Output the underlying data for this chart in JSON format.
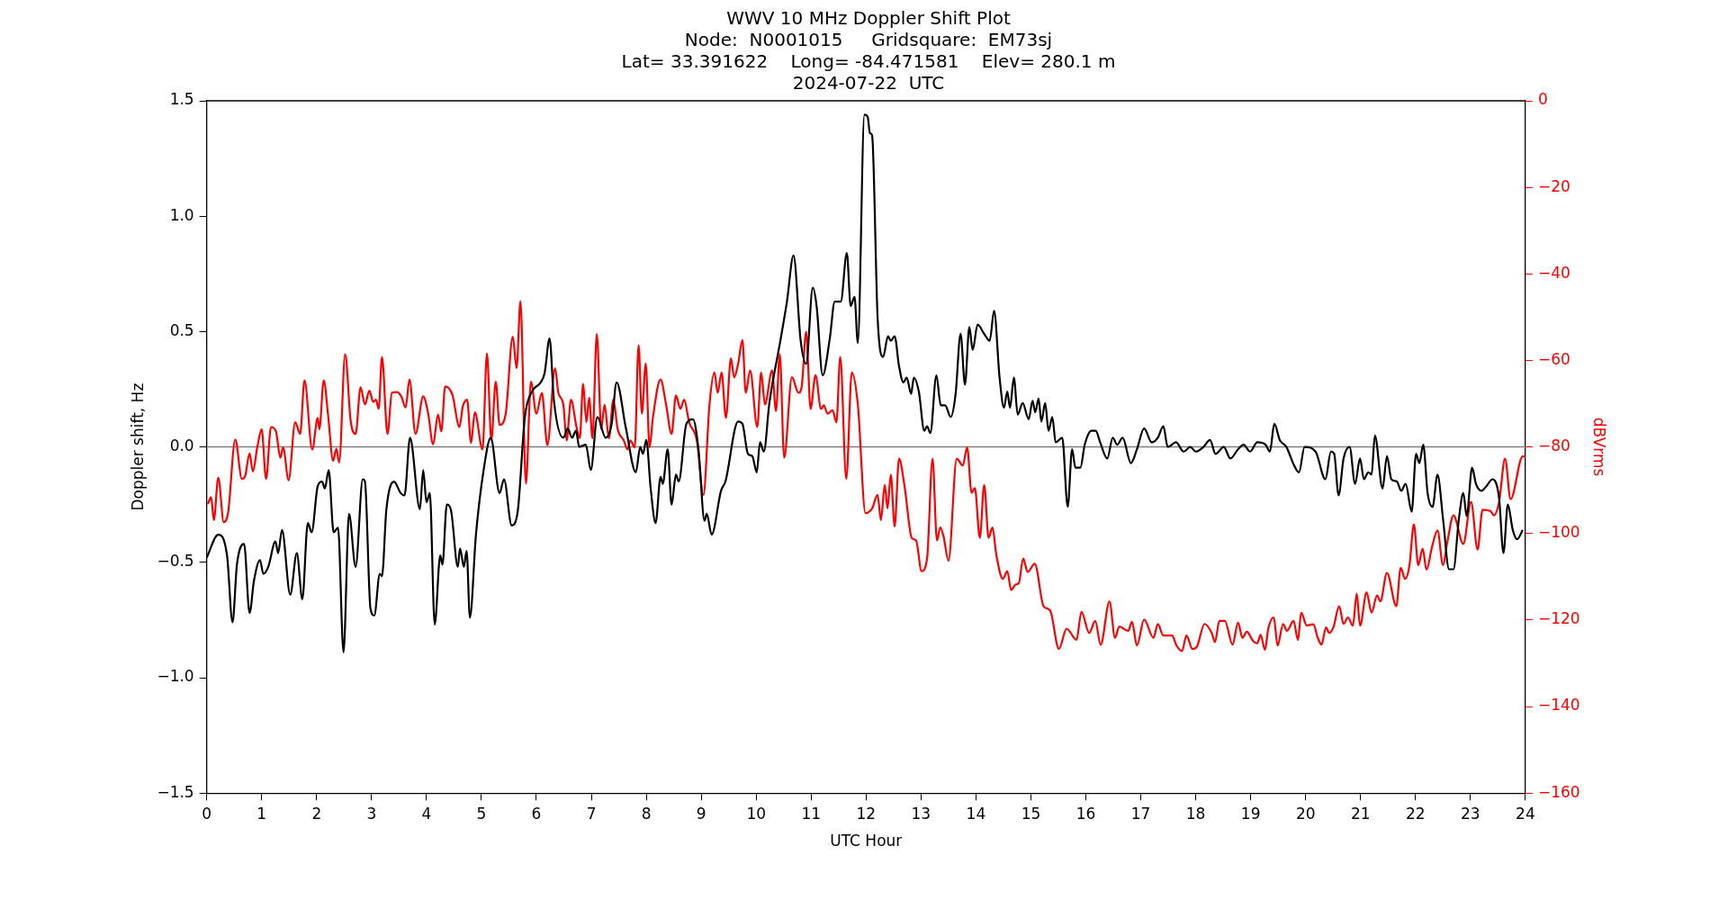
{
  "chart_data": {
    "type": "line",
    "title": "WWV 10 MHz Doppler Shift Plot\nNode:  N0001015     Gridsquare:  EM73sj\nLat= 33.391622    Long= -84.471581    Elev= 280.1 m\n2024-07-22  UTC",
    "xlabel": "UTC Hour",
    "ylabel": "Doppler shift, Hz",
    "y2label": "dBVrms",
    "xlim": [
      0,
      24
    ],
    "xticks": [
      0,
      1,
      2,
      3,
      4,
      5,
      6,
      7,
      8,
      9,
      10,
      11,
      12,
      13,
      14,
      15,
      16,
      17,
      18,
      19,
      20,
      21,
      22,
      23,
      24
    ],
    "ylim": [
      -1.5,
      1.5
    ],
    "yticks": [
      {
        "value": -1.5,
        "label": "−1.5"
      },
      {
        "value": -1.0,
        "label": "−1.0"
      },
      {
        "value": -0.5,
        "label": "−0.5"
      },
      {
        "value": 0,
        "label": "0.0"
      },
      {
        "value": 0.5,
        "label": "0.5"
      },
      {
        "value": 1.0,
        "label": "1.0"
      },
      {
        "value": 1.5,
        "label": "1.5"
      }
    ],
    "y2lim": [
      -160,
      0
    ],
    "y2ticks": [
      {
        "value": -160,
        "label": "−160"
      },
      {
        "value": -140,
        "label": "−140"
      },
      {
        "value": -120,
        "label": "−120"
      },
      {
        "value": -100,
        "label": "−100"
      },
      {
        "value": -80,
        "label": "−80"
      },
      {
        "value": -60,
        "label": "−60"
      },
      {
        "value": -40,
        "label": "−40"
      },
      {
        "value": -20,
        "label": "−20"
      },
      0
    ],
    "grid": false,
    "legend": false,
    "marker": "none",
    "line_style": "solid",
    "ref_lines": [
      {
        "axis": "y",
        "value": 0,
        "color": "#808080"
      }
    ],
    "series": [
      {
        "color": "#000000",
        "x": [
          0,
          0.21,
          0.37,
          0.47,
          0.55,
          0.68,
          0.78,
          0.86,
          0.97,
          1.03,
          1.12,
          1.25,
          1.3,
          1.37,
          1.52,
          1.64,
          1.74,
          1.84,
          1.91,
          2.02,
          2.1,
          2.15,
          2.22,
          2.31,
          2.39,
          2.49,
          2.59,
          2.71,
          2.84,
          2.88,
          2.98,
          3.05,
          3.15,
          3.19,
          3.27,
          3.41,
          3.53,
          3.6,
          3.7,
          3.88,
          3.94,
          4.0,
          4.06,
          4.15,
          4.25,
          4.29,
          4.37,
          4.45,
          4.57,
          4.61,
          4.68,
          4.73,
          4.79,
          4.9,
          5.04,
          5.17,
          5.33,
          5.41,
          5.55,
          5.66,
          5.79,
          5.92,
          6.08,
          6.15,
          6.24,
          6.32,
          6.49,
          6.57,
          6.65,
          6.72,
          6.78,
          6.9,
          6.99,
          7.11,
          7.26,
          7.37,
          7.46,
          7.63,
          7.81,
          7.89,
          7.94,
          8.0,
          8.08,
          8.17,
          8.26,
          8.3,
          8.39,
          8.46,
          8.54,
          8.59,
          8.73,
          8.85,
          8.95,
          9.06,
          9.1,
          9.19,
          9.36,
          9.44,
          9.67,
          9.75,
          9.85,
          9.93,
          10.01,
          10.07,
          10.14,
          10.24,
          10.44,
          10.56,
          10.68,
          10.81,
          10.91,
          11.03,
          11.1,
          11.21,
          11.34,
          11.43,
          11.54,
          11.65,
          11.72,
          11.79,
          11.85,
          11.97,
          12.03,
          12.07,
          12.11,
          12.21,
          12.31,
          12.4,
          12.45,
          12.52,
          12.6,
          12.68,
          12.74,
          12.82,
          12.87,
          12.96,
          13.06,
          13.11,
          13.17,
          13.28,
          13.36,
          13.44,
          13.54,
          13.63,
          13.72,
          13.8,
          13.88,
          13.94,
          14.03,
          14.15,
          14.25,
          14.33,
          14.43,
          14.51,
          14.57,
          14.62,
          14.69,
          14.76,
          14.85,
          14.96,
          15.03,
          15.08,
          15.14,
          15.19,
          15.26,
          15.32,
          15.39,
          15.45,
          15.57,
          15.67,
          15.75,
          15.81,
          15.9,
          15.98,
          16.1,
          16.18,
          16.26,
          16.39,
          16.49,
          16.57,
          16.67,
          16.82,
          16.93,
          17.06,
          17.2,
          17.31,
          17.41,
          17.49,
          17.64,
          17.78,
          17.9,
          18.0,
          18.14,
          18.26,
          18.36,
          18.51,
          18.63,
          18.77,
          18.87,
          18.99,
          19.12,
          19.27,
          19.35,
          19.43,
          19.53,
          19.65,
          19.79,
          19.88,
          19.98,
          20.18,
          20.36,
          20.46,
          20.52,
          20.6,
          20.69,
          20.8,
          20.9,
          20.99,
          21.06,
          21.14,
          21.2,
          21.26,
          21.4,
          21.48,
          21.56,
          21.66,
          21.74,
          21.82,
          21.93,
          22.01,
          22.07,
          22.14,
          22.22,
          22.31,
          22.4,
          22.5,
          22.61,
          22.69,
          22.79,
          22.87,
          22.93,
          23.03,
          23.1,
          23.2,
          23.29,
          23.4,
          23.52,
          23.6,
          23.68,
          23.77,
          23.85,
          23.95
        ],
        "values": [
          -0.48,
          -0.38,
          -0.47,
          -0.76,
          -0.51,
          -0.42,
          -0.72,
          -0.58,
          -0.49,
          -0.55,
          -0.52,
          -0.41,
          -0.46,
          -0.36,
          -0.64,
          -0.46,
          -0.66,
          -0.33,
          -0.37,
          -0.17,
          -0.15,
          -0.18,
          -0.1,
          -0.37,
          -0.35,
          -0.89,
          -0.29,
          -0.52,
          -0.14,
          -0.15,
          -0.7,
          -0.73,
          -0.55,
          -0.56,
          -0.27,
          -0.15,
          -0.2,
          -0.21,
          0.04,
          -0.27,
          -0.1,
          -0.24,
          -0.2,
          -0.77,
          -0.47,
          -0.51,
          -0.25,
          -0.28,
          -0.52,
          -0.44,
          -0.52,
          -0.45,
          -0.74,
          -0.38,
          -0.1,
          0.04,
          -0.2,
          -0.14,
          -0.34,
          -0.28,
          0.13,
          0.24,
          0.28,
          0.32,
          0.47,
          0.2,
          0.04,
          0.08,
          0.04,
          0.07,
          0.0,
          0.01,
          -0.1,
          0.13,
          0.04,
          0.1,
          0.28,
          0.08,
          -0.11,
          0.0,
          -0.03,
          0.03,
          -0.18,
          -0.33,
          -0.13,
          -0.16,
          -0.01,
          -0.25,
          -0.12,
          -0.15,
          0.1,
          0.12,
          -0.01,
          -0.32,
          -0.29,
          -0.38,
          -0.19,
          -0.15,
          0.11,
          0.1,
          -0.03,
          -0.04,
          -0.11,
          0.02,
          -0.02,
          0.19,
          0.46,
          0.63,
          0.83,
          0.46,
          0.36,
          0.69,
          0.61,
          0.31,
          0.47,
          0.63,
          0.63,
          0.84,
          0.61,
          0.65,
          0.45,
          1.44,
          1.43,
          1.36,
          1.35,
          0.56,
          0.39,
          0.48,
          0.46,
          0.48,
          0.35,
          0.28,
          0.3,
          0.23,
          0.3,
          0.24,
          0.07,
          0.09,
          0.06,
          0.31,
          0.18,
          0.18,
          0.13,
          0.23,
          0.49,
          0.27,
          0.52,
          0.42,
          0.53,
          0.49,
          0.46,
          0.59,
          0.3,
          0.17,
          0.24,
          0.17,
          0.3,
          0.14,
          0.19,
          0.12,
          0.2,
          0.15,
          0.21,
          0.11,
          0.19,
          0.07,
          0.13,
          0.02,
          0.04,
          -0.26,
          -0.01,
          -0.09,
          -0.09,
          0.01,
          0.07,
          0.07,
          0.02,
          -0.05,
          0.04,
          0.01,
          0.04,
          -0.07,
          -0.01,
          0.08,
          0.02,
          0.04,
          0.09,
          0.0,
          0.02,
          -0.02,
          0.0,
          -0.02,
          0.0,
          0.03,
          -0.03,
          0.0,
          -0.05,
          -0.01,
          0.01,
          -0.02,
          0.02,
          0.01,
          -0.02,
          0.1,
          0.03,
          0.0,
          -0.08,
          -0.11,
          0.0,
          -0.02,
          -0.14,
          -0.02,
          -0.03,
          -0.21,
          -0.05,
          0.0,
          -0.16,
          -0.05,
          -0.14,
          -0.11,
          -0.12,
          0.05,
          -0.18,
          -0.04,
          -0.14,
          -0.15,
          -0.19,
          -0.16,
          -0.28,
          -0.03,
          -0.07,
          0.01,
          -0.2,
          -0.26,
          -0.12,
          -0.31,
          -0.53,
          -0.53,
          -0.31,
          -0.2,
          -0.3,
          -0.09,
          -0.16,
          -0.19,
          -0.17,
          -0.14,
          -0.22,
          -0.46,
          -0.25,
          -0.36,
          -0.4,
          -0.36
        ]
      },
      {
        "color": "#ff0000",
        "axis": "y2",
        "x": [
          0.02,
          0.08,
          0.13,
          0.21,
          0.31,
          0.39,
          0.52,
          0.64,
          0.7,
          0.78,
          0.84,
          0.92,
          1.0,
          1.08,
          1.17,
          1.26,
          1.34,
          1.39,
          1.49,
          1.61,
          1.7,
          1.78,
          1.92,
          2.02,
          2.05,
          2.13,
          2.21,
          2.3,
          2.36,
          2.41,
          2.52,
          2.62,
          2.71,
          2.8,
          2.88,
          2.96,
          3.03,
          3.08,
          3.13,
          3.19,
          3.29,
          3.37,
          3.46,
          3.54,
          3.62,
          3.69,
          3.8,
          3.94,
          4.03,
          4.12,
          4.21,
          4.27,
          4.34,
          4.47,
          4.6,
          4.66,
          4.74,
          4.81,
          4.88,
          5.02,
          5.1,
          5.18,
          5.26,
          5.33,
          5.44,
          5.57,
          5.64,
          5.71,
          5.81,
          5.9,
          6.0,
          6.1,
          6.2,
          6.34,
          6.4,
          6.49,
          6.55,
          6.63,
          6.73,
          6.79,
          6.85,
          6.91,
          6.96,
          7.02,
          7.1,
          7.18,
          7.24,
          7.32,
          7.4,
          7.48,
          7.59,
          7.66,
          7.71,
          7.79,
          7.86,
          7.92,
          7.99,
          8.06,
          8.12,
          8.26,
          8.36,
          8.46,
          8.54,
          8.62,
          8.69,
          8.78,
          8.92,
          9.04,
          9.15,
          9.24,
          9.3,
          9.37,
          9.45,
          9.54,
          9.6,
          9.67,
          9.75,
          9.81,
          9.89,
          10.02,
          10.09,
          10.16,
          10.29,
          10.36,
          10.43,
          10.51,
          10.65,
          10.77,
          10.83,
          10.91,
          10.99,
          11.08,
          11.18,
          11.23,
          11.3,
          11.39,
          11.46,
          11.53,
          11.64,
          11.74,
          11.85,
          11.99,
          12.11,
          12.21,
          12.27,
          12.34,
          12.39,
          12.45,
          12.52,
          12.6,
          12.7,
          12.83,
          12.91,
          13.01,
          13.11,
          13.21,
          13.29,
          13.35,
          13.41,
          13.5,
          13.65,
          13.76,
          13.84,
          13.92,
          13.98,
          14.07,
          14.15,
          14.23,
          14.3,
          14.37,
          14.49,
          14.57,
          14.64,
          14.72,
          14.78,
          14.86,
          14.94,
          15.07,
          15.23,
          15.35,
          15.51,
          15.65,
          15.83,
          15.92,
          16.06,
          16.17,
          16.27,
          16.43,
          16.53,
          16.61,
          16.77,
          16.84,
          16.93,
          17.06,
          17.23,
          17.31,
          17.41,
          17.57,
          17.65,
          17.75,
          17.83,
          17.94,
          18.02,
          18.16,
          18.29,
          18.35,
          18.43,
          18.53,
          18.67,
          18.77,
          18.85,
          18.93,
          19.04,
          19.12,
          19.18,
          19.26,
          19.32,
          19.42,
          19.49,
          19.59,
          19.66,
          19.78,
          19.86,
          19.92,
          20.02,
          20.14,
          20.22,
          20.29,
          20.37,
          20.43,
          20.51,
          20.61,
          20.69,
          20.77,
          20.86,
          20.93,
          20.99,
          21.11,
          21.2,
          21.3,
          21.36,
          21.48,
          21.65,
          21.73,
          21.81,
          21.89,
          21.97,
          22.05,
          22.13,
          22.2,
          22.3,
          22.4,
          22.5,
          22.58,
          22.69,
          22.87,
          23.01,
          23.13,
          23.22,
          23.36,
          23.43,
          23.52,
          23.63,
          23.73,
          23.95,
          24.0
        ],
        "values": [
          -93.2,
          -91.6,
          -96.9,
          -87.1,
          -97.4,
          -95.1,
          -78.3,
          -87.4,
          -86.7,
          -81.5,
          -85.7,
          -80.1,
          -75.9,
          -87.4,
          -75.4,
          -76.4,
          -82.5,
          -80.1,
          -87.7,
          -74.3,
          -77.0,
          -64.6,
          -80.6,
          -73.3,
          -75.9,
          -64.6,
          -72.8,
          -83.2,
          -80.4,
          -83.6,
          -58.6,
          -74.0,
          -77.0,
          -66.2,
          -70.2,
          -67.0,
          -69.6,
          -69.1,
          -71.2,
          -59.2,
          -77.0,
          -67.5,
          -67.3,
          -68.3,
          -70.9,
          -64.4,
          -77.0,
          -68.3,
          -72.3,
          -79.4,
          -72.5,
          -76.4,
          -66.0,
          -67.9,
          -75.4,
          -70.7,
          -69.1,
          -79.1,
          -72.0,
          -80.6,
          -58.4,
          -78.5,
          -64.9,
          -74.9,
          -72.5,
          -54.5,
          -61.8,
          -46.3,
          -88.5,
          -64.9,
          -72.3,
          -67.5,
          -79.6,
          -61.8,
          -67.5,
          -70.2,
          -78.5,
          -69.1,
          -75.4,
          -78.0,
          -65.4,
          -74.3,
          -68.6,
          -78.0,
          -53.9,
          -75.9,
          -70.2,
          -78.0,
          -69.1,
          -75.9,
          -78.5,
          -80.6,
          -78.5,
          -80.1,
          -56.5,
          -72.3,
          -60.7,
          -80.1,
          -73.3,
          -64.4,
          -70.2,
          -77.0,
          -68.1,
          -71.2,
          -69.1,
          -74.3,
          -78.5,
          -91.1,
          -70.2,
          -62.8,
          -67.5,
          -62.8,
          -73.3,
          -59.5,
          -63.9,
          -60.9,
          -55.3,
          -67.5,
          -62.3,
          -75.4,
          -62.8,
          -70.2,
          -62.3,
          -71.7,
          -58.6,
          -82.5,
          -63.9,
          -67.5,
          -65.9,
          -53.4,
          -71.2,
          -63.4,
          -71.2,
          -70.4,
          -72.3,
          -71.5,
          -74.3,
          -59.2,
          -87.4,
          -62.8,
          -70.2,
          -95.3,
          -94.2,
          -91.1,
          -96.9,
          -88.8,
          -94.2,
          -86.4,
          -98.4,
          -82.7,
          -89.0,
          -101.0,
          -101.6,
          -108.7,
          -105.8,
          -82.7,
          -101.6,
          -98.6,
          -100.7,
          -106.3,
          -82.7,
          -84.3,
          -80.1,
          -90.6,
          -89.5,
          -101.0,
          -88.8,
          -101.0,
          -98.6,
          -104.9,
          -110.5,
          -108.7,
          -113.1,
          -111.8,
          -111.5,
          -105.8,
          -108.9,
          -107.0,
          -116.8,
          -117.8,
          -126.7,
          -122.0,
          -124.6,
          -118.1,
          -123.0,
          -120.2,
          -125.7,
          -115.7,
          -124.1,
          -121.5,
          -122.5,
          -120.4,
          -125.9,
          -119.9,
          -124.1,
          -120.9,
          -123.6,
          -123.6,
          -125.9,
          -127.2,
          -123.6,
          -126.7,
          -126.2,
          -120.9,
          -123.0,
          -125.1,
          -120.2,
          -120.2,
          -125.7,
          -120.6,
          -124.1,
          -122.7,
          -124.8,
          -125.4,
          -123.4,
          -126.9,
          -122.0,
          -119.4,
          -125.9,
          -120.9,
          -122.5,
          -120.2,
          -124.6,
          -118.3,
          -121.3,
          -121.0,
          -124.1,
          -125.7,
          -121.7,
          -123.0,
          -121.5,
          -116.8,
          -120.9,
          -119.4,
          -121.3,
          -113.9,
          -121.3,
          -113.6,
          -118.3,
          -114.3,
          -115.7,
          -109.1,
          -116.8,
          -107.9,
          -110.5,
          -107.3,
          -97.9,
          -107.3,
          -103.5,
          -108.4,
          -103.1,
          -99.3,
          -107.3,
          -101.9,
          -95.8,
          -102.4,
          -92.7,
          -103.7,
          -94.5,
          -94.8,
          -95.8,
          -92.7,
          -82.7,
          -92.1,
          -82.2,
          -82.2
        ]
      }
    ]
  }
}
